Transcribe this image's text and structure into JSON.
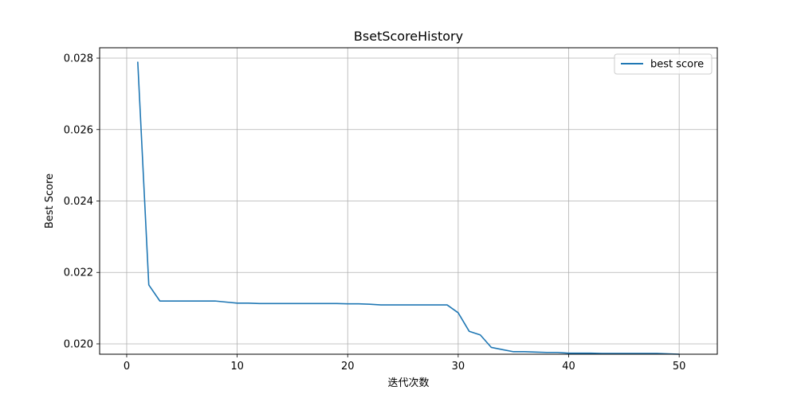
{
  "chart_data": {
    "type": "line",
    "title": "BsetScoreHistory",
    "xlabel": "迭代次数",
    "ylabel": "Best Score",
    "xlim": [
      -2.45,
      53.45
    ],
    "ylim": [
      0.01971,
      0.02829
    ],
    "xticks": [
      0,
      10,
      20,
      30,
      40,
      50
    ],
    "xtick_labels": [
      "0",
      "10",
      "20",
      "30",
      "40",
      "50"
    ],
    "yticks": [
      0.02,
      0.022,
      0.024,
      0.026,
      0.028
    ],
    "ytick_labels": [
      "0.020",
      "0.022",
      "0.024",
      "0.026",
      "0.028"
    ],
    "grid": true,
    "legend": {
      "position": "top-right"
    },
    "colors": {
      "series": "#1f77b4",
      "grid": "#b0b0b0"
    },
    "series": [
      {
        "name": "best score",
        "x": [
          1,
          2,
          3,
          4,
          5,
          6,
          7,
          8,
          9,
          10,
          11,
          12,
          13,
          14,
          15,
          16,
          17,
          18,
          19,
          20,
          21,
          22,
          23,
          24,
          25,
          26,
          27,
          28,
          29,
          30,
          31,
          32,
          33,
          34,
          35,
          36,
          37,
          38,
          39,
          40,
          41,
          42,
          43,
          44,
          45,
          46,
          47,
          48,
          49,
          50
        ],
        "y": [
          0.0279,
          0.02165,
          0.0212,
          0.0212,
          0.0212,
          0.0212,
          0.0212,
          0.0212,
          0.02117,
          0.02114,
          0.02114,
          0.02113,
          0.02113,
          0.02113,
          0.02113,
          0.02113,
          0.02113,
          0.02113,
          0.02113,
          0.02112,
          0.02112,
          0.02111,
          0.02109,
          0.02109,
          0.02109,
          0.02109,
          0.02109,
          0.02109,
          0.02109,
          0.02087,
          0.02035,
          0.02025,
          0.0199,
          0.01984,
          0.01978,
          0.01978,
          0.01977,
          0.01976,
          0.01976,
          0.01974,
          0.01974,
          0.01974,
          0.01973,
          0.01973,
          0.01973,
          0.01973,
          0.01973,
          0.01973,
          0.01972,
          0.01971
        ]
      }
    ]
  }
}
